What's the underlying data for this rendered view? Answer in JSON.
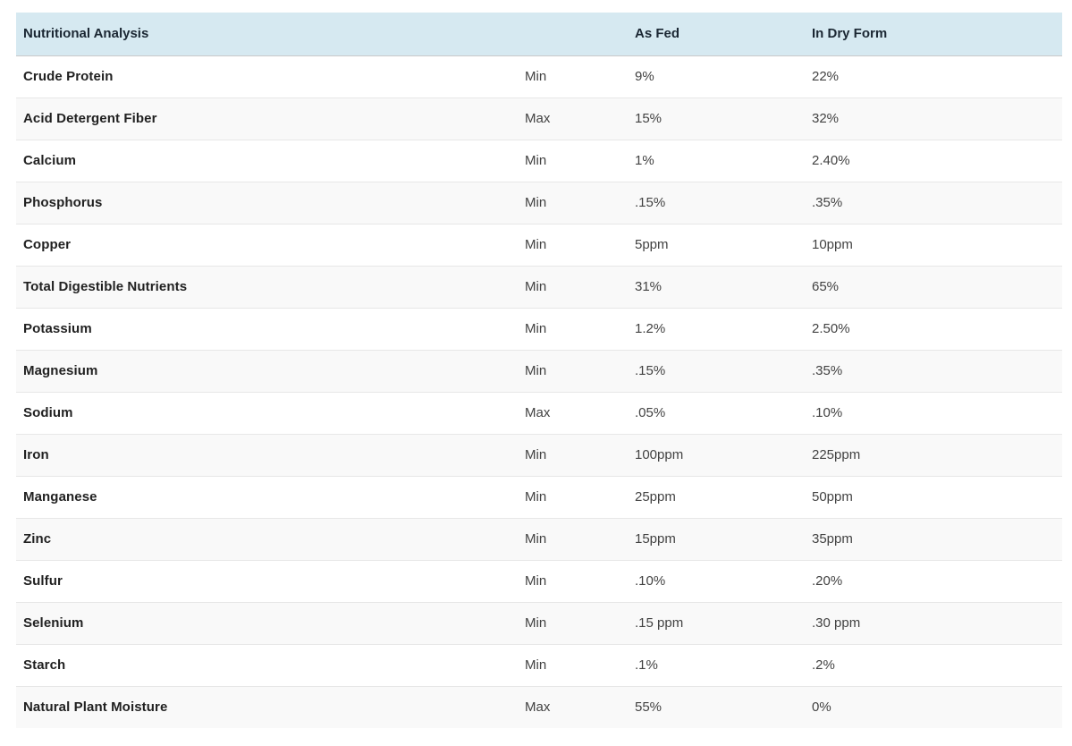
{
  "table": {
    "title": "Nutritional Analysis",
    "columns": {
      "as_fed": "As Fed",
      "in_dry_form": "In Dry Form"
    },
    "rows": [
      {
        "nutrient": "Crude Protein",
        "constraint": "Min",
        "as_fed": "9%",
        "in_dry_form": "22%"
      },
      {
        "nutrient": "Acid Detergent Fiber",
        "constraint": "Max",
        "as_fed": "15%",
        "in_dry_form": "32%"
      },
      {
        "nutrient": "Calcium",
        "constraint": "Min",
        "as_fed": "1%",
        "in_dry_form": "2.40%"
      },
      {
        "nutrient": "Phosphorus",
        "constraint": "Min",
        "as_fed": ".15%",
        "in_dry_form": ".35%"
      },
      {
        "nutrient": "Copper",
        "constraint": "Min",
        "as_fed": "5ppm",
        "in_dry_form": "10ppm"
      },
      {
        "nutrient": "Total Digestible Nutrients",
        "constraint": "Min",
        "as_fed": "31%",
        "in_dry_form": "65%"
      },
      {
        "nutrient": "Potassium",
        "constraint": "Min",
        "as_fed": "1.2%",
        "in_dry_form": "2.50%"
      },
      {
        "nutrient": "Magnesium",
        "constraint": "Min",
        "as_fed": ".15%",
        "in_dry_form": ".35%"
      },
      {
        "nutrient": "Sodium",
        "constraint": "Max",
        "as_fed": ".05%",
        "in_dry_form": ".10%"
      },
      {
        "nutrient": "Iron",
        "constraint": "Min",
        "as_fed": "100ppm",
        "in_dry_form": "225ppm"
      },
      {
        "nutrient": "Manganese",
        "constraint": "Min",
        "as_fed": "25ppm",
        "in_dry_form": "50ppm"
      },
      {
        "nutrient": "Zinc",
        "constraint": "Min",
        "as_fed": "15ppm",
        "in_dry_form": "35ppm"
      },
      {
        "nutrient": "Sulfur",
        "constraint": "Min",
        "as_fed": ".10%",
        "in_dry_form": ".20%"
      },
      {
        "nutrient": "Selenium",
        "constraint": "Min",
        "as_fed": ".15 ppm",
        "in_dry_form": ".30 ppm"
      },
      {
        "nutrient": "Starch",
        "constraint": "Min",
        "as_fed": ".1%",
        "in_dry_form": ".2%"
      },
      {
        "nutrient": "Natural Plant Moisture",
        "constraint": "Max",
        "as_fed": "55%",
        "in_dry_form": "0%"
      }
    ]
  },
  "colors": {
    "header_bg": "#d6e9f1",
    "stripe_bg": "#f9f9f9",
    "row_border": "#e7e7e7",
    "header_border": "#c9c9c9",
    "name_text": "#212121",
    "value_text": "#424242"
  }
}
